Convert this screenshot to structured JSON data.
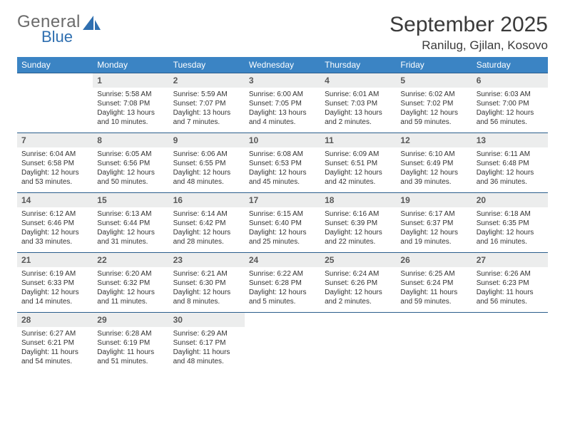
{
  "logo": {
    "line1": "General",
    "line2": "Blue"
  },
  "header": {
    "month": "September 2025",
    "location": "Ranilug, Gjilan, Kosovo"
  },
  "colors": {
    "headerBg": "#3b84c4",
    "ruleColor": "#2b5e8c",
    "dayNumBg": "#eceded"
  },
  "dayNames": [
    "Sunday",
    "Monday",
    "Tuesday",
    "Wednesday",
    "Thursday",
    "Friday",
    "Saturday"
  ],
  "weeks": [
    [
      null,
      {
        "n": "1",
        "sr": "Sunrise: 5:58 AM",
        "ss": "Sunset: 7:08 PM",
        "d1": "Daylight: 13 hours",
        "d2": "and 10 minutes."
      },
      {
        "n": "2",
        "sr": "Sunrise: 5:59 AM",
        "ss": "Sunset: 7:07 PM",
        "d1": "Daylight: 13 hours",
        "d2": "and 7 minutes."
      },
      {
        "n": "3",
        "sr": "Sunrise: 6:00 AM",
        "ss": "Sunset: 7:05 PM",
        "d1": "Daylight: 13 hours",
        "d2": "and 4 minutes."
      },
      {
        "n": "4",
        "sr": "Sunrise: 6:01 AM",
        "ss": "Sunset: 7:03 PM",
        "d1": "Daylight: 13 hours",
        "d2": "and 2 minutes."
      },
      {
        "n": "5",
        "sr": "Sunrise: 6:02 AM",
        "ss": "Sunset: 7:02 PM",
        "d1": "Daylight: 12 hours",
        "d2": "and 59 minutes."
      },
      {
        "n": "6",
        "sr": "Sunrise: 6:03 AM",
        "ss": "Sunset: 7:00 PM",
        "d1": "Daylight: 12 hours",
        "d2": "and 56 minutes."
      }
    ],
    [
      {
        "n": "7",
        "sr": "Sunrise: 6:04 AM",
        "ss": "Sunset: 6:58 PM",
        "d1": "Daylight: 12 hours",
        "d2": "and 53 minutes."
      },
      {
        "n": "8",
        "sr": "Sunrise: 6:05 AM",
        "ss": "Sunset: 6:56 PM",
        "d1": "Daylight: 12 hours",
        "d2": "and 50 minutes."
      },
      {
        "n": "9",
        "sr": "Sunrise: 6:06 AM",
        "ss": "Sunset: 6:55 PM",
        "d1": "Daylight: 12 hours",
        "d2": "and 48 minutes."
      },
      {
        "n": "10",
        "sr": "Sunrise: 6:08 AM",
        "ss": "Sunset: 6:53 PM",
        "d1": "Daylight: 12 hours",
        "d2": "and 45 minutes."
      },
      {
        "n": "11",
        "sr": "Sunrise: 6:09 AM",
        "ss": "Sunset: 6:51 PM",
        "d1": "Daylight: 12 hours",
        "d2": "and 42 minutes."
      },
      {
        "n": "12",
        "sr": "Sunrise: 6:10 AM",
        "ss": "Sunset: 6:49 PM",
        "d1": "Daylight: 12 hours",
        "d2": "and 39 minutes."
      },
      {
        "n": "13",
        "sr": "Sunrise: 6:11 AM",
        "ss": "Sunset: 6:48 PM",
        "d1": "Daylight: 12 hours",
        "d2": "and 36 minutes."
      }
    ],
    [
      {
        "n": "14",
        "sr": "Sunrise: 6:12 AM",
        "ss": "Sunset: 6:46 PM",
        "d1": "Daylight: 12 hours",
        "d2": "and 33 minutes."
      },
      {
        "n": "15",
        "sr": "Sunrise: 6:13 AM",
        "ss": "Sunset: 6:44 PM",
        "d1": "Daylight: 12 hours",
        "d2": "and 31 minutes."
      },
      {
        "n": "16",
        "sr": "Sunrise: 6:14 AM",
        "ss": "Sunset: 6:42 PM",
        "d1": "Daylight: 12 hours",
        "d2": "and 28 minutes."
      },
      {
        "n": "17",
        "sr": "Sunrise: 6:15 AM",
        "ss": "Sunset: 6:40 PM",
        "d1": "Daylight: 12 hours",
        "d2": "and 25 minutes."
      },
      {
        "n": "18",
        "sr": "Sunrise: 6:16 AM",
        "ss": "Sunset: 6:39 PM",
        "d1": "Daylight: 12 hours",
        "d2": "and 22 minutes."
      },
      {
        "n": "19",
        "sr": "Sunrise: 6:17 AM",
        "ss": "Sunset: 6:37 PM",
        "d1": "Daylight: 12 hours",
        "d2": "and 19 minutes."
      },
      {
        "n": "20",
        "sr": "Sunrise: 6:18 AM",
        "ss": "Sunset: 6:35 PM",
        "d1": "Daylight: 12 hours",
        "d2": "and 16 minutes."
      }
    ],
    [
      {
        "n": "21",
        "sr": "Sunrise: 6:19 AM",
        "ss": "Sunset: 6:33 PM",
        "d1": "Daylight: 12 hours",
        "d2": "and 14 minutes."
      },
      {
        "n": "22",
        "sr": "Sunrise: 6:20 AM",
        "ss": "Sunset: 6:32 PM",
        "d1": "Daylight: 12 hours",
        "d2": "and 11 minutes."
      },
      {
        "n": "23",
        "sr": "Sunrise: 6:21 AM",
        "ss": "Sunset: 6:30 PM",
        "d1": "Daylight: 12 hours",
        "d2": "and 8 minutes."
      },
      {
        "n": "24",
        "sr": "Sunrise: 6:22 AM",
        "ss": "Sunset: 6:28 PM",
        "d1": "Daylight: 12 hours",
        "d2": "and 5 minutes."
      },
      {
        "n": "25",
        "sr": "Sunrise: 6:24 AM",
        "ss": "Sunset: 6:26 PM",
        "d1": "Daylight: 12 hours",
        "d2": "and 2 minutes."
      },
      {
        "n": "26",
        "sr": "Sunrise: 6:25 AM",
        "ss": "Sunset: 6:24 PM",
        "d1": "Daylight: 11 hours",
        "d2": "and 59 minutes."
      },
      {
        "n": "27",
        "sr": "Sunrise: 6:26 AM",
        "ss": "Sunset: 6:23 PM",
        "d1": "Daylight: 11 hours",
        "d2": "and 56 minutes."
      }
    ],
    [
      {
        "n": "28",
        "sr": "Sunrise: 6:27 AM",
        "ss": "Sunset: 6:21 PM",
        "d1": "Daylight: 11 hours",
        "d2": "and 54 minutes."
      },
      {
        "n": "29",
        "sr": "Sunrise: 6:28 AM",
        "ss": "Sunset: 6:19 PM",
        "d1": "Daylight: 11 hours",
        "d2": "and 51 minutes."
      },
      {
        "n": "30",
        "sr": "Sunrise: 6:29 AM",
        "ss": "Sunset: 6:17 PM",
        "d1": "Daylight: 11 hours",
        "d2": "and 48 minutes."
      },
      null,
      null,
      null,
      null
    ]
  ]
}
